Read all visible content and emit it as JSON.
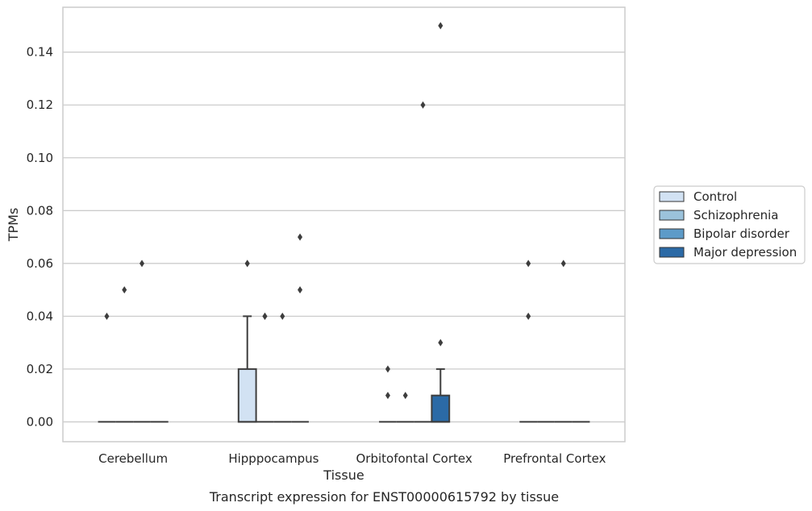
{
  "chart_data": {
    "type": "box",
    "caption": "Transcript expression for ENST00000615792 by tissue",
    "xlabel": "Tissue",
    "ylabel": "TPMs",
    "ylim": [
      -0.0075,
      0.157
    ],
    "yticks": [
      "0.00",
      "0.02",
      "0.04",
      "0.06",
      "0.08",
      "0.10",
      "0.12",
      "0.14"
    ],
    "grid": "horizontal",
    "legend_position": "right",
    "categories": [
      "Cerebellum",
      "Hipppocampus",
      "Orbitofontal Cortex",
      "Prefrontal Cortex"
    ],
    "series": [
      {
        "name": "Control",
        "color": "#d2e2f3",
        "boxes": [
          {
            "q1": 0,
            "median": 0,
            "q3": 0,
            "whisker_low": 0,
            "whisker_high": 0,
            "outliers": [
              0.04
            ]
          },
          {
            "q1": 0,
            "median": 0,
            "q3": 0.02,
            "whisker_low": 0,
            "whisker_high": 0.04,
            "outliers": [
              0.06,
              0.06
            ]
          },
          {
            "q1": 0,
            "median": 0,
            "q3": 0,
            "whisker_low": 0,
            "whisker_high": 0,
            "outliers": [
              0.01,
              0.02
            ]
          },
          {
            "q1": 0,
            "median": 0,
            "q3": 0,
            "whisker_low": 0,
            "whisker_high": 0,
            "outliers": [
              0.04,
              0.06
            ]
          }
        ]
      },
      {
        "name": "Schizophrenia",
        "color": "#9bc2db",
        "boxes": [
          {
            "q1": 0,
            "median": 0,
            "q3": 0,
            "whisker_low": 0,
            "whisker_high": 0,
            "outliers": [
              0.05
            ]
          },
          {
            "q1": 0,
            "median": 0,
            "q3": 0,
            "whisker_low": 0,
            "whisker_high": 0,
            "outliers": [
              0.04,
              0.04
            ]
          },
          {
            "q1": 0,
            "median": 0,
            "q3": 0,
            "whisker_low": 0,
            "whisker_high": 0,
            "outliers": [
              0.01
            ]
          },
          {
            "q1": 0,
            "median": 0,
            "q3": 0,
            "whisker_low": 0,
            "whisker_high": 0,
            "outliers": []
          }
        ]
      },
      {
        "name": "Bipolar disorder",
        "color": "#5d9bc8",
        "boxes": [
          {
            "q1": 0,
            "median": 0,
            "q3": 0,
            "whisker_low": 0,
            "whisker_high": 0,
            "outliers": [
              0.06
            ]
          },
          {
            "q1": 0,
            "median": 0,
            "q3": 0,
            "whisker_low": 0,
            "whisker_high": 0,
            "outliers": [
              0.04
            ]
          },
          {
            "q1": 0,
            "median": 0,
            "q3": 0,
            "whisker_low": 0,
            "whisker_high": 0,
            "outliers": [
              0.12
            ]
          },
          {
            "q1": 0,
            "median": 0,
            "q3": 0,
            "whisker_low": 0,
            "whisker_high": 0,
            "outliers": [
              0.06
            ]
          }
        ]
      },
      {
        "name": "Major depression",
        "color": "#2b6aa6",
        "boxes": [
          {
            "q1": 0,
            "median": 0,
            "q3": 0,
            "whisker_low": 0,
            "whisker_high": 0,
            "outliers": []
          },
          {
            "q1": 0,
            "median": 0,
            "q3": 0,
            "whisker_low": 0,
            "whisker_high": 0,
            "outliers": [
              0.05,
              0.07
            ]
          },
          {
            "q1": 0,
            "median": 0,
            "q3": 0.01,
            "whisker_low": 0,
            "whisker_high": 0.02,
            "outliers": [
              0.03,
              0.15
            ]
          },
          {
            "q1": 0,
            "median": 0,
            "q3": 0,
            "whisker_low": 0,
            "whisker_high": 0,
            "outliers": []
          }
        ]
      }
    ]
  }
}
